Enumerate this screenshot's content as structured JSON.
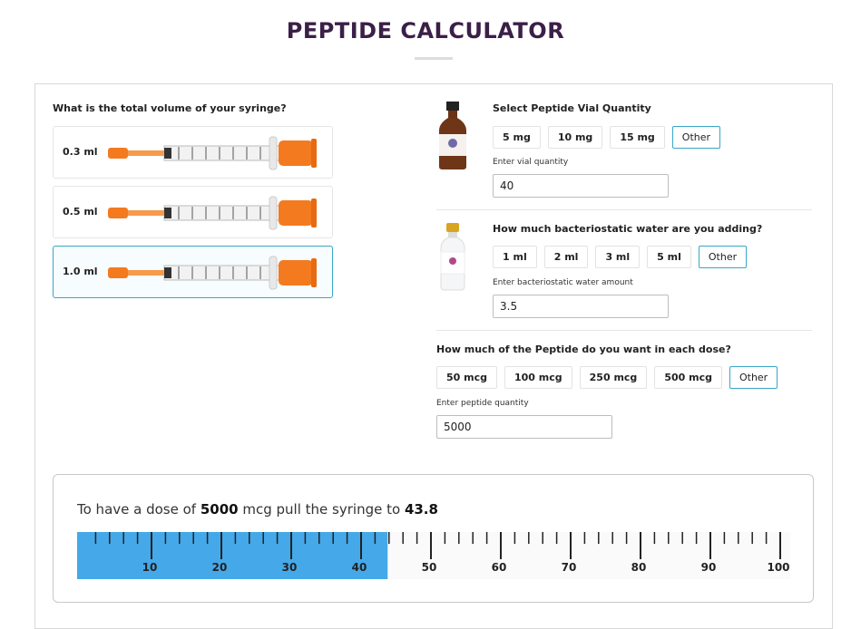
{
  "header": {
    "title": "PEPTIDE CALCULATOR"
  },
  "syringe": {
    "question": "What is the total volume of your syringe?",
    "options": [
      "0.3 ml",
      "0.5 ml",
      "1.0 ml"
    ],
    "selected": 2
  },
  "vial": {
    "question": "Select Peptide Vial Quantity",
    "options": [
      "5 mg",
      "10 mg",
      "15 mg",
      "Other"
    ],
    "selected": 3,
    "input_label": "Enter vial quantity",
    "input_value": 40
  },
  "water": {
    "question": "How much bacteriostatic water are you adding?",
    "options": [
      "1 ml",
      "2 ml",
      "3 ml",
      "5 ml",
      "Other"
    ],
    "selected": 4,
    "input_label": "Enter bacteriostatic water amount",
    "input_value": 3.5
  },
  "dose": {
    "question": "How much of the Peptide do you want in each dose?",
    "options": [
      "50 mcg",
      "100 mcg",
      "250 mcg",
      "500 mcg",
      "Other"
    ],
    "selected": 4,
    "input_label": "Enter peptide quantity",
    "input_value": 5000
  },
  "result": {
    "prefix": "To have a dose of",
    "dose": 5000,
    "middle": "mcg pull the syringe to",
    "units": 43.8,
    "scale": {
      "range": [
        0,
        100
      ],
      "ticks": [
        10,
        20,
        30,
        40,
        50,
        60,
        70,
        80,
        90,
        100
      ],
      "fill_color": "#45a8e8"
    }
  }
}
